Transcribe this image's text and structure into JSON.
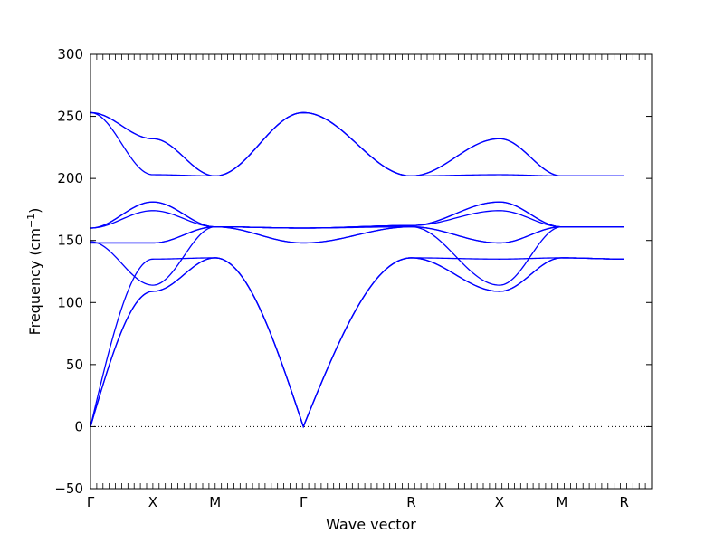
{
  "chart_data": {
    "type": "line",
    "title": "",
    "xlabel": "Wave vector",
    "ylabel": "Frequency (cm",
    "ylabel_sup": "−1",
    "ylabel_close": ")",
    "ylim": [
      -50,
      300
    ],
    "yticks": [
      -50,
      0,
      50,
      100,
      150,
      200,
      250,
      300
    ],
    "ytick_labels": [
      "−50",
      "0",
      "50",
      "100",
      "150",
      "200",
      "250",
      "300"
    ],
    "xlim": [
      0,
      4.5
    ],
    "xticks": [
      {
        "x": 0.0,
        "label": "Γ"
      },
      {
        "x": 0.5,
        "label": "X"
      },
      {
        "x": 1.0,
        "label": "M"
      },
      {
        "x": 1.7071,
        "label": "Γ"
      },
      {
        "x": 2.5731,
        "label": "R"
      },
      {
        "x": 3.2802,
        "label": "X"
      },
      {
        "x": 3.7802,
        "label": "M"
      },
      {
        "x": 4.2802,
        "label": "R"
      }
    ],
    "zero_line": true,
    "grid": false,
    "legend": "none",
    "line_color": "#0000ff",
    "series": [
      {
        "x": [
          0,
          0.5,
          1.0,
          1.7071,
          2.5731,
          3.2802,
          3.7802,
          4.2802
        ],
        "y": [
          0,
          109,
          136,
          0,
          136,
          109,
          136,
          135
        ]
      },
      {
        "x": [
          0,
          0.5,
          1.0,
          1.7071,
          2.5731,
          3.2802,
          3.7802,
          4.2802
        ],
        "y": [
          0,
          109,
          136,
          0,
          136,
          109,
          136,
          135
        ]
      },
      {
        "x": [
          0,
          0.5,
          1.0,
          1.7071,
          2.5731,
          3.2802,
          3.7802,
          4.2802
        ],
        "y": [
          0,
          135,
          136,
          0,
          136,
          135,
          136,
          135
        ]
      },
      {
        "x": [
          0,
          0.5,
          1.0,
          1.7071,
          2.5731,
          3.2802,
          3.7802,
          4.2802
        ],
        "y": [
          149,
          114,
          161,
          148,
          161,
          114,
          161,
          161
        ]
      },
      {
        "x": [
          0,
          0.5,
          1.0,
          1.7071,
          2.5731,
          3.2802,
          3.7802,
          4.2802
        ],
        "y": [
          148,
          148,
          161,
          148,
          161,
          148,
          161,
          161
        ]
      },
      {
        "x": [
          0,
          0.5,
          1.0,
          1.7071,
          2.5731,
          3.2802,
          3.7802,
          4.2802
        ],
        "y": [
          148,
          148,
          161,
          160,
          161,
          148,
          161,
          161
        ]
      },
      {
        "x": [
          0,
          0.5,
          1.0,
          1.7071,
          2.5731,
          3.2802,
          3.7802,
          4.2802
        ],
        "y": [
          160,
          174,
          161,
          160,
          162,
          174,
          161,
          161
        ]
      },
      {
        "x": [
          0,
          0.5,
          1.0,
          1.7071,
          2.5731,
          3.2802,
          3.7802,
          4.2802
        ],
        "y": [
          160,
          181,
          161,
          160,
          162,
          181,
          161,
          161
        ]
      },
      {
        "x": [
          0,
          0.5,
          1.0,
          1.7071,
          2.5731,
          3.2802,
          3.7802,
          4.2802
        ],
        "y": [
          160,
          181,
          161,
          160,
          162,
          181,
          161,
          161
        ]
      },
      {
        "x": [
          0,
          0.5,
          1.0,
          1.7071,
          2.5731,
          3.2802,
          3.7802,
          4.2802
        ],
        "y": [
          253,
          203,
          202,
          253,
          202,
          203,
          202,
          202
        ]
      },
      {
        "x": [
          0,
          0.5,
          1.0,
          1.7071,
          2.5731,
          3.2802,
          3.7802,
          4.2802
        ],
        "y": [
          253,
          232,
          202,
          253,
          202,
          232,
          202,
          202
        ]
      },
      {
        "x": [
          0,
          0.5,
          1.0,
          1.7071,
          2.5731,
          3.2802,
          3.7802,
          4.2802
        ],
        "y": [
          253,
          232,
          202,
          253,
          202,
          232,
          202,
          202
        ]
      }
    ]
  }
}
